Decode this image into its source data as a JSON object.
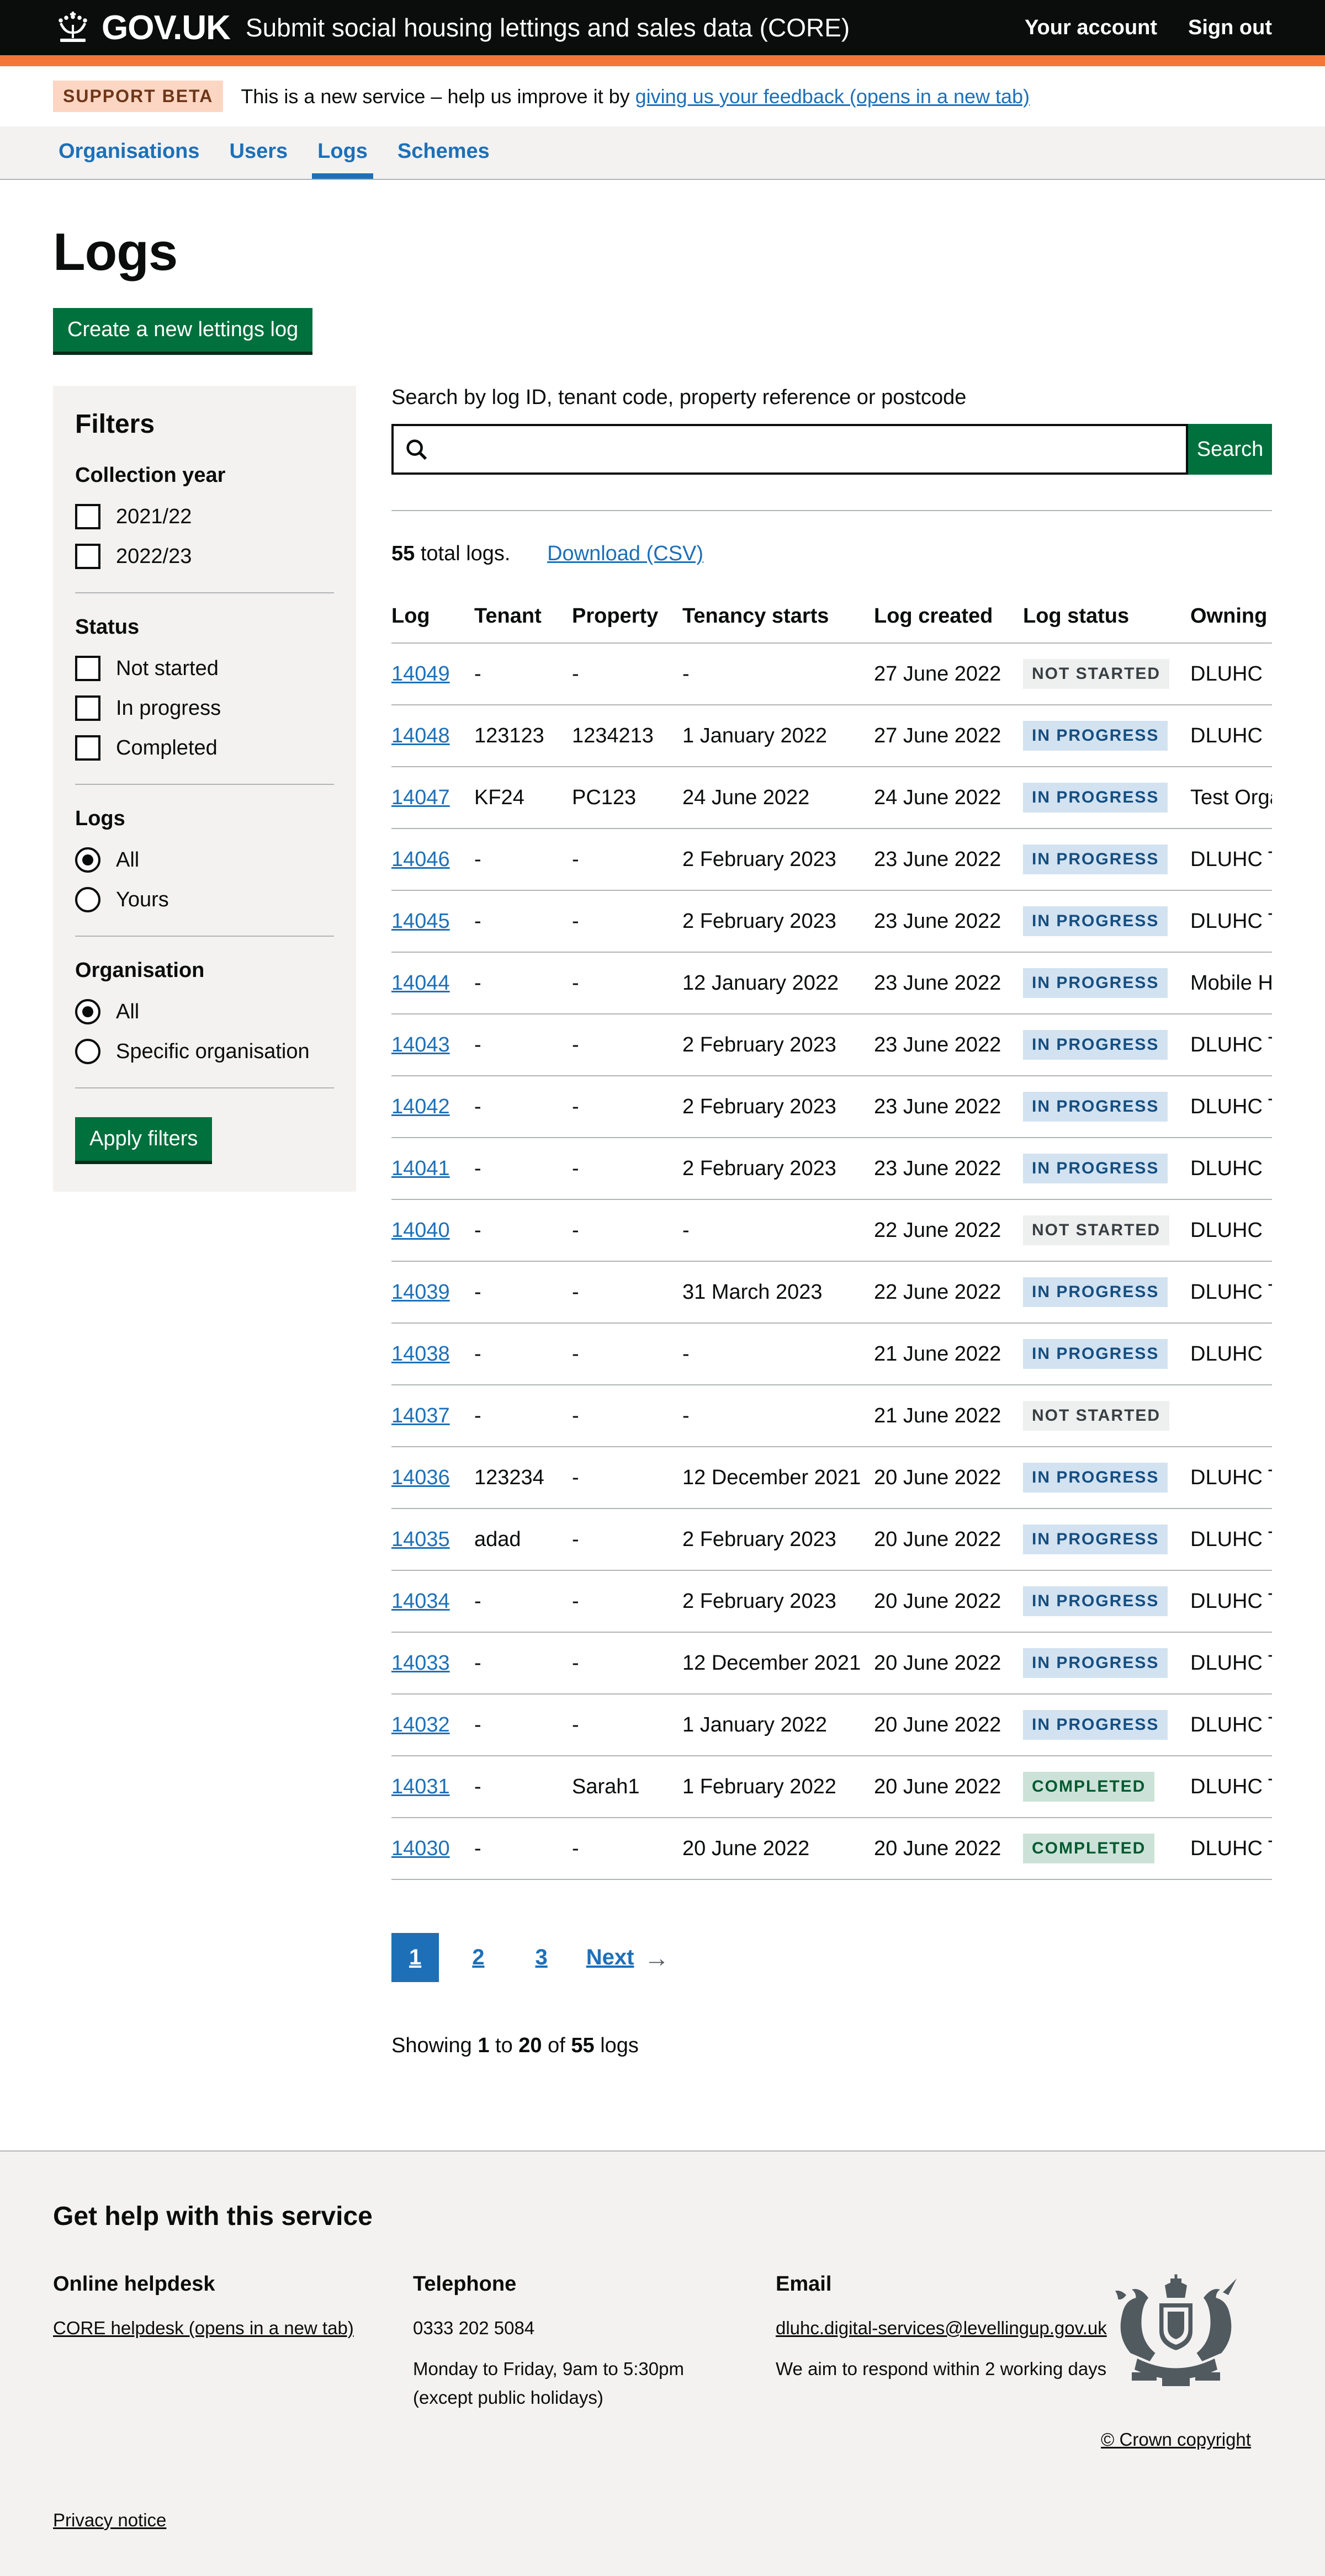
{
  "colors": {
    "brand_black": "#0b0c0c",
    "brand_orange": "#f47738",
    "link_blue": "#1d70b8",
    "button_green": "#00703c",
    "panel_grey": "#f3f2f1",
    "border_grey": "#b1b4b6",
    "tag_grey_bg": "#eeefef",
    "tag_grey_text": "#383f43",
    "tag_blue_bg": "#d2e2f1",
    "tag_blue_text": "#144e81",
    "tag_green_bg": "#cce2d8",
    "tag_green_text": "#005a30",
    "beta_tag_bg": "#fcd6c3",
    "beta_tag_text": "#6e3619"
  },
  "header": {
    "logo_text": "GOV.UK",
    "service_name": "Submit social housing lettings and sales data (CORE)",
    "account_link": "Your account",
    "signout_link": "Sign out"
  },
  "phase_banner": {
    "tag": "SUPPORT BETA",
    "text_before_link": "This is a new service – help us improve it by ",
    "link_text": "giving us your feedback (opens in a new tab)"
  },
  "nav": {
    "items": [
      {
        "label": "Organisations"
      },
      {
        "label": "Users"
      },
      {
        "label": "Logs"
      },
      {
        "label": "Schemes"
      }
    ],
    "active": "Logs"
  },
  "page": {
    "title": "Logs",
    "create_button": "Create a new lettings log"
  },
  "filters": {
    "title": "Filters",
    "collection_year": {
      "legend": "Collection year",
      "options": [
        "2021/22",
        "2022/23"
      ]
    },
    "status": {
      "legend": "Status",
      "options": [
        "Not started",
        "In progress",
        "Completed"
      ]
    },
    "logs": {
      "legend": "Logs",
      "options": [
        "All",
        "Yours"
      ],
      "selected": "All"
    },
    "organisation": {
      "legend": "Organisation",
      "options": [
        "All",
        "Specific organisation"
      ],
      "selected": "All"
    },
    "apply_button": "Apply filters"
  },
  "search": {
    "label": "Search by log ID, tenant code, property reference or postcode",
    "value": "",
    "button": "Search"
  },
  "results": {
    "total_count": "55",
    "total_rest": " total logs.",
    "download_link": "Download (CSV)"
  },
  "table": {
    "columns": [
      "Log",
      "Tenant",
      "Property",
      "Tenancy starts",
      "Log created",
      "Log status",
      "Owning organisation"
    ],
    "rows": [
      {
        "log": "14049",
        "tenant": "-",
        "property": "-",
        "tenancy_starts": "-",
        "log_created": "27 June 2022",
        "status": "NOT STARTED",
        "variant": "grey",
        "owning": "DLUHC"
      },
      {
        "log": "14048",
        "tenant": "123123",
        "property": "1234213",
        "tenancy_starts": "1 January 2022",
        "log_created": "27 June 2022",
        "status": "IN PROGRESS",
        "variant": "blue",
        "owning": "DLUHC"
      },
      {
        "log": "14047",
        "tenant": "KF24",
        "property": "PC123",
        "tenancy_starts": "24 June 2022",
        "log_created": "24 June 2022",
        "status": "IN PROGRESS",
        "variant": "blue",
        "owning": "Test Organi"
      },
      {
        "log": "14046",
        "tenant": "-",
        "property": "-",
        "tenancy_starts": "2 February 2023",
        "log_created": "23 June 2022",
        "status": "IN PROGRESS",
        "variant": "blue",
        "owning": "DLUHC Tes"
      },
      {
        "log": "14045",
        "tenant": "-",
        "property": "-",
        "tenancy_starts": "2 February 2023",
        "log_created": "23 June 2022",
        "status": "IN PROGRESS",
        "variant": "blue",
        "owning": "DLUHC Tes"
      },
      {
        "log": "14044",
        "tenant": "-",
        "property": "-",
        "tenancy_starts": "12 January 2022",
        "log_created": "23 June 2022",
        "status": "IN PROGRESS",
        "variant": "blue",
        "owning": "Mobile Hou"
      },
      {
        "log": "14043",
        "tenant": "-",
        "property": "-",
        "tenancy_starts": "2 February 2023",
        "log_created": "23 June 2022",
        "status": "IN PROGRESS",
        "variant": "blue",
        "owning": "DLUHC Tes"
      },
      {
        "log": "14042",
        "tenant": "-",
        "property": "-",
        "tenancy_starts": "2 February 2023",
        "log_created": "23 June 2022",
        "status": "IN PROGRESS",
        "variant": "blue",
        "owning": "DLUHC Tes"
      },
      {
        "log": "14041",
        "tenant": "-",
        "property": "-",
        "tenancy_starts": "2 February 2023",
        "log_created": "23 June 2022",
        "status": "IN PROGRESS",
        "variant": "blue",
        "owning": "DLUHC"
      },
      {
        "log": "14040",
        "tenant": "-",
        "property": "-",
        "tenancy_starts": "-",
        "log_created": "22 June 2022",
        "status": "NOT STARTED",
        "variant": "grey",
        "owning": "DLUHC"
      },
      {
        "log": "14039",
        "tenant": "-",
        "property": "-",
        "tenancy_starts": "31 March 2023",
        "log_created": "22 June 2022",
        "status": "IN PROGRESS",
        "variant": "blue",
        "owning": "DLUHC Tes"
      },
      {
        "log": "14038",
        "tenant": "-",
        "property": "-",
        "tenancy_starts": "-",
        "log_created": "21 June 2022",
        "status": "IN PROGRESS",
        "variant": "blue",
        "owning": "DLUHC"
      },
      {
        "log": "14037",
        "tenant": "-",
        "property": "-",
        "tenancy_starts": "-",
        "log_created": "21 June 2022",
        "status": "NOT STARTED",
        "variant": "grey",
        "owning": ""
      },
      {
        "log": "14036",
        "tenant": "123234",
        "property": "-",
        "tenancy_starts": "12 December 2021",
        "log_created": "20 June 2022",
        "status": "IN PROGRESS",
        "variant": "blue",
        "owning": "DLUHC Tes"
      },
      {
        "log": "14035",
        "tenant": "adad",
        "property": "-",
        "tenancy_starts": "2 February 2023",
        "log_created": "20 June 2022",
        "status": "IN PROGRESS",
        "variant": "blue",
        "owning": "DLUHC Tes"
      },
      {
        "log": "14034",
        "tenant": "-",
        "property": "-",
        "tenancy_starts": "2 February 2023",
        "log_created": "20 June 2022",
        "status": "IN PROGRESS",
        "variant": "blue",
        "owning": "DLUHC Tes"
      },
      {
        "log": "14033",
        "tenant": "-",
        "property": "-",
        "tenancy_starts": "12 December 2021",
        "log_created": "20 June 2022",
        "status": "IN PROGRESS",
        "variant": "blue",
        "owning": "DLUHC Tes"
      },
      {
        "log": "14032",
        "tenant": "-",
        "property": "-",
        "tenancy_starts": "1 January 2022",
        "log_created": "20 June 2022",
        "status": "IN PROGRESS",
        "variant": "blue",
        "owning": "DLUHC Tes"
      },
      {
        "log": "14031",
        "tenant": "-",
        "property": "Sarah1",
        "tenancy_starts": "1 February 2022",
        "log_created": "20 June 2022",
        "status": "COMPLETED",
        "variant": "green",
        "owning": "DLUHC Tes"
      },
      {
        "log": "14030",
        "tenant": "-",
        "property": "-",
        "tenancy_starts": "20 June 2022",
        "log_created": "20 June 2022",
        "status": "COMPLETED",
        "variant": "green",
        "owning": "DLUHC Tes"
      }
    ]
  },
  "pagination": {
    "pages": [
      "1",
      "2",
      "3"
    ],
    "current": "1",
    "next_label": "Next",
    "next_arrow": "→"
  },
  "summary": {
    "prefix": "Showing ",
    "from": "1",
    "mid": " to ",
    "to": "20",
    "of": " of ",
    "total": "55",
    "suffix": " logs"
  },
  "footer": {
    "title": "Get help with this service",
    "helpdesk_heading": "Online helpdesk",
    "helpdesk_link": "CORE helpdesk (opens in a new tab)",
    "telephone_heading": "Telephone",
    "telephone_number": "0333 202 5084",
    "telephone_hours1": "Monday to Friday, 9am to 5:30pm",
    "telephone_hours2": "(except public holidays)",
    "email_heading": "Email",
    "email_link": "dluhc.digital-services@levellingup.gov.uk",
    "email_note": "We aim to respond within 2 working days",
    "privacy_link": "Privacy notice",
    "copyright_link": "© Crown copyright"
  }
}
